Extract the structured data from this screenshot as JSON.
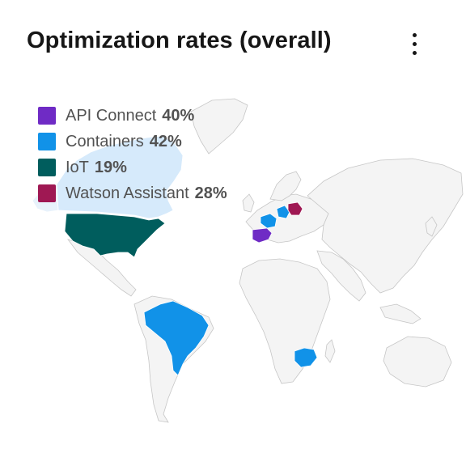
{
  "header": {
    "title": "Optimization rates (overall)",
    "menu_icon": "overflow-menu-vertical-icon"
  },
  "legend": [
    {
      "name": "API Connect",
      "value": "40%",
      "color": "#6f2bc5"
    },
    {
      "name": "Containers",
      "value": "42%",
      "color": "#1192e8"
    },
    {
      "name": "IoT",
      "value": "19%",
      "color": "#005d5d"
    },
    {
      "name": "Watson Assistant",
      "value": "28%",
      "color": "#9f1853"
    }
  ],
  "map": {
    "base_land_color": "#f4f4f4",
    "border_color": "#c6c6c6",
    "highlighted_regions": [
      {
        "region": "Spain",
        "series": "API Connect"
      },
      {
        "region": "France",
        "series": "Containers"
      },
      {
        "region": "Germany",
        "series": "Containers"
      },
      {
        "region": "Brazil",
        "series": "Containers"
      },
      {
        "region": "South Africa",
        "series": "Containers"
      },
      {
        "region": "United States",
        "series": "IoT"
      },
      {
        "region": "Poland",
        "series": "Watson Assistant"
      }
    ]
  }
}
